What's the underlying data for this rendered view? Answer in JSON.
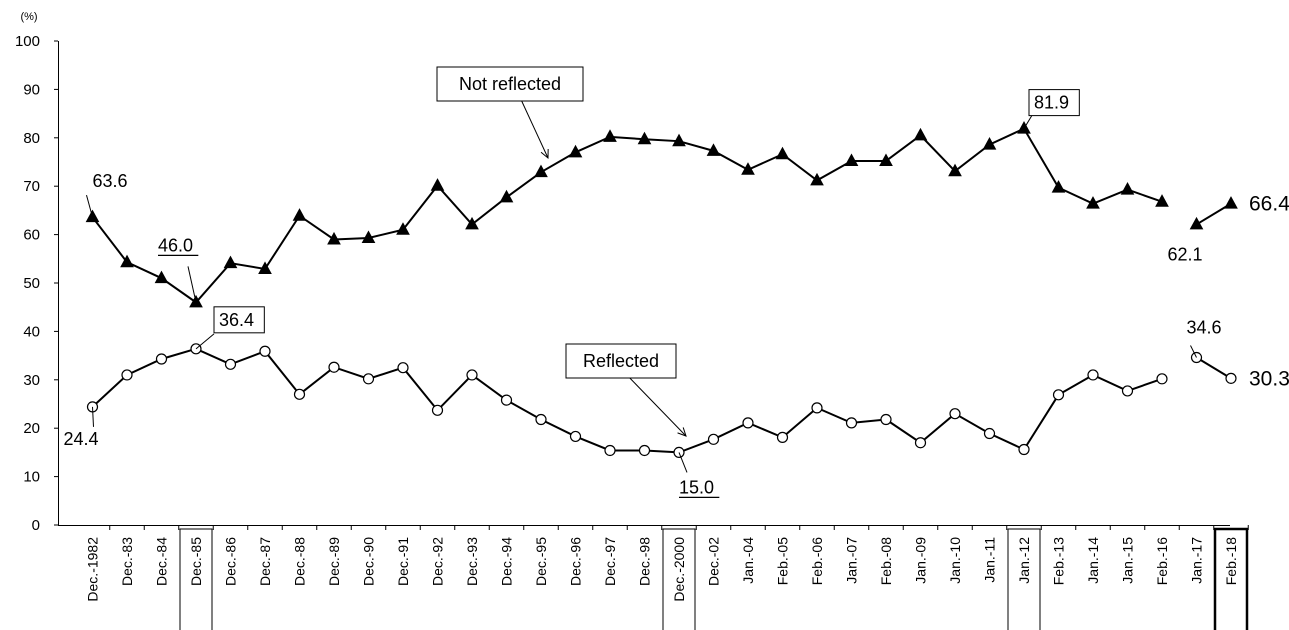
{
  "chart_data": {
    "type": "line",
    "unit_label": "(%)",
    "ylim": [
      0,
      100
    ],
    "yticks": [
      "0",
      "10",
      "20",
      "30",
      "40",
      "50",
      "60",
      "70",
      "80",
      "90",
      "100"
    ],
    "grid": false,
    "categories": [
      "Dec.-1982",
      "Dec.-83",
      "Dec.-84",
      "Dec.-85",
      "Dec.-86",
      "Dec.-87",
      "Dec.-88",
      "Dec.-89",
      "Dec.-90",
      "Dec.-91",
      "Dec.-92",
      "Dec.-93",
      "Dec.-94",
      "Dec.-95",
      "Dec.-96",
      "Dec.-97",
      "Dec.-98",
      "Dec.-2000",
      "Dec.-02",
      "Jan.-04",
      "Feb.-05",
      "Feb.-06",
      "Jan.-07",
      "Feb.-08",
      "Jan.-09",
      "Jan.-10",
      "Jan.-11",
      "Jan.-12",
      "Feb.-13",
      "Jan.-14",
      "Jan.-15",
      "Feb.-16",
      "Jan.-17",
      "Feb.-18"
    ],
    "boxed_categories": [
      "Dec.-85",
      "Dec.-2000",
      "Jan.-12",
      "Feb.-18"
    ],
    "series": [
      {
        "name": "Not reflected",
        "marker": "filled-triangle",
        "break_after": "Feb.-16",
        "values": [
          63.6,
          54.3,
          51.0,
          46.0,
          54.1,
          52.9,
          63.9,
          59.0,
          59.3,
          61.0,
          70.1,
          62.1,
          67.7,
          72.9,
          77.0,
          80.2,
          79.7,
          79.3,
          77.3,
          73.4,
          76.6,
          71.2,
          75.2,
          75.2,
          80.5,
          73.1,
          78.6,
          81.9,
          69.7,
          66.4,
          69.3,
          66.8,
          62.1,
          66.4
        ]
      },
      {
        "name": "Reflected",
        "marker": "open-circle",
        "break_after": "Feb.-16",
        "values": [
          24.4,
          31.0,
          34.3,
          36.4,
          33.2,
          35.9,
          27.0,
          32.6,
          30.2,
          32.5,
          23.7,
          31.0,
          25.8,
          21.8,
          18.3,
          15.4,
          15.4,
          15.0,
          17.7,
          21.1,
          18.1,
          24.2,
          21.1,
          21.8,
          17.0,
          23.0,
          18.9,
          15.6,
          26.9,
          31.0,
          27.7,
          30.2,
          34.6,
          30.3
        ]
      }
    ],
    "value_labels": [
      {
        "series": "Not reflected",
        "category": "Dec.-1982",
        "text": "63.6"
      },
      {
        "series": "Not reflected",
        "category": "Dec.-85",
        "text": "46.0"
      },
      {
        "series": "Not reflected",
        "category": "Jan.-12",
        "text": "81.9"
      },
      {
        "series": "Not reflected",
        "category": "Jan.-17",
        "text": "62.1"
      },
      {
        "series": "Not reflected",
        "category": "Feb.-18",
        "text": "66.4"
      },
      {
        "series": "Reflected",
        "category": "Dec.-1982",
        "text": "24.4"
      },
      {
        "series": "Reflected",
        "category": "Dec.-85",
        "text": "36.4"
      },
      {
        "series": "Reflected",
        "category": "Dec.-2000",
        "text": "15.0"
      },
      {
        "series": "Reflected",
        "category": "Jan.-17",
        "text": "34.6"
      },
      {
        "series": "Reflected",
        "category": "Feb.-18",
        "text": "30.3"
      }
    ]
  }
}
